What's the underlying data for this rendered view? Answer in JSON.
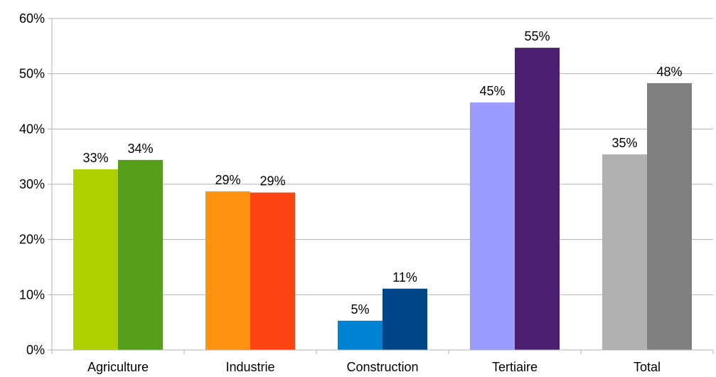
{
  "chart_data": {
    "type": "bar",
    "title": "",
    "xlabel": "",
    "ylabel": "",
    "categories": [
      "Agriculture",
      "Industrie",
      "Construction",
      "Tertiaire",
      "Total"
    ],
    "series": [
      {
        "values": [
          0.327,
          0.287,
          0.053,
          0.448,
          0.354
        ]
      },
      {
        "values": [
          0.344,
          0.285,
          0.111,
          0.547,
          0.483
        ]
      }
    ],
    "data_labels": [
      [
        "33%",
        "29%",
        "5%",
        "45%",
        "35%"
      ],
      [
        "34%",
        "29%",
        "11%",
        "55%",
        "48%"
      ]
    ],
    "bar_colors": [
      [
        "#b0cf00",
        "#ff9210",
        "#0082d2",
        "#9c9cff",
        "#b0b0b0"
      ],
      [
        "#579d1c",
        "#ff4414",
        "#004586",
        "#4b1f6f",
        "#808080"
      ]
    ],
    "ylim": [
      0,
      0.6
    ],
    "y_ticks": [
      0,
      0.1,
      0.2,
      0.3,
      0.4,
      0.5,
      0.6
    ],
    "y_tick_labels": [
      "0%",
      "10%",
      "20%",
      "30%",
      "40%",
      "50%",
      "60%"
    ],
    "grid": true,
    "legend": "none",
    "colors": {
      "grid": "#b3b3b3",
      "axis": "#b3b3b3"
    }
  }
}
